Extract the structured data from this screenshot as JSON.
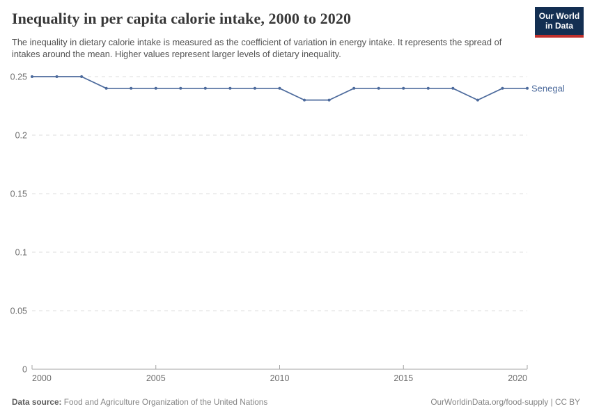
{
  "header": {
    "title": "Inequality in per capita calorie intake, 2000 to 2020",
    "subtitle": "The inequality in dietary calorie intake is measured as the coefficient of variation in energy intake. It represents the spread of intakes around the mean. Higher values represent larger levels of dietary inequality.",
    "logo": {
      "line1": "Our World",
      "line2": "in Data"
    }
  },
  "chart_data": {
    "type": "line",
    "title": "Inequality in per capita calorie intake, 2000 to 2020",
    "xlabel": "",
    "ylabel": "",
    "xlim": [
      2000,
      2020
    ],
    "ylim": [
      0,
      0.25
    ],
    "x_ticks": [
      2000,
      2005,
      2010,
      2015,
      2020
    ],
    "y_ticks": [
      0,
      0.05,
      0.1,
      0.15,
      0.2,
      0.25
    ],
    "y_tick_labels": [
      "0",
      "0.05",
      "0.1",
      "0.15",
      "0.2",
      "0.25"
    ],
    "grid": "horizontal dashed",
    "legend_position": "end-of-line label",
    "series": [
      {
        "name": "Senegal",
        "color": "#4C6A9C",
        "x": [
          2000,
          2001,
          2002,
          2003,
          2004,
          2005,
          2006,
          2007,
          2008,
          2009,
          2010,
          2011,
          2012,
          2013,
          2014,
          2015,
          2016,
          2017,
          2018,
          2019,
          2020
        ],
        "values": [
          0.25,
          0.25,
          0.25,
          0.24,
          0.24,
          0.24,
          0.24,
          0.24,
          0.24,
          0.24,
          0.24,
          0.23,
          0.23,
          0.24,
          0.24,
          0.24,
          0.24,
          0.24,
          0.23,
          0.24,
          0.24
        ]
      }
    ]
  },
  "footer": {
    "datasource_label": "Data source:",
    "datasource_value": "Food and Agriculture Organization of the United Nations",
    "attribution": "OurWorldinData.org/food-supply | CC BY"
  },
  "colors": {
    "line": "#4C6A9C",
    "grid": "#dddddd",
    "axis": "#a3a3a3",
    "tick_label": "#6e6e6e",
    "logo_bg": "#132F52",
    "logo_stripe": "#C0302C"
  }
}
